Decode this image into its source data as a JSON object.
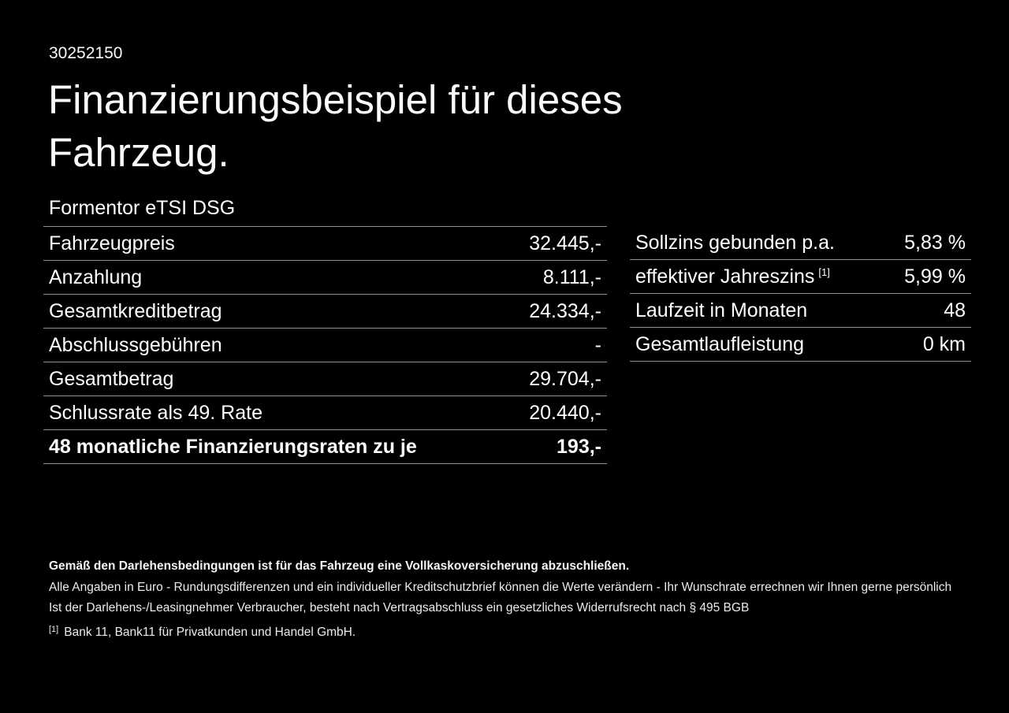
{
  "meta": {
    "background_color": "#000000",
    "text_color": "#ffffff",
    "divider_color": "#8f8f8f"
  },
  "header": {
    "vehicle_id": "30252150",
    "title_line1": "Finanzierungsbeispiel für dieses",
    "title_line2": "Fahrzeug.",
    "model_name": "Formentor eTSI DSG"
  },
  "finance_table": {
    "rows": [
      {
        "label": "Fahrzeugpreis",
        "value": "32.445,-"
      },
      {
        "label": "Anzahlung",
        "value": "8.111,-"
      },
      {
        "label": "Gesamtkreditbetrag",
        "value": "24.334,-"
      },
      {
        "label": "Abschlussgebühren",
        "value": "-"
      },
      {
        "label": "Gesamtbetrag",
        "value": "29.704,-"
      },
      {
        "label": "Schlussrate als 49. Rate",
        "value": "20.440,-"
      },
      {
        "label": "48 monatliche Finanzierungsraten zu je",
        "value": "193,-",
        "bold": true
      }
    ]
  },
  "conditions_table": {
    "rows": [
      {
        "label": "Sollzins gebunden p.a.",
        "value": "5,83 %"
      },
      {
        "label": "effektiver Jahreszins",
        "sup": "[1]",
        "value": "5,99 %"
      },
      {
        "label": "Laufzeit in Monaten",
        "value": "48"
      },
      {
        "label": "Gesamtlaufleistung",
        "value": "0 km"
      }
    ]
  },
  "footer": {
    "insurance_note": "Gemäß den Darlehensbedingungen ist für das Fahrzeug eine Vollkaskoversicherung abzuschließen.",
    "disclaimer_line1": "Alle Angaben in Euro - Rundungsdifferenzen und ein individueller Kreditschutzbrief können die Werte verändern - Ihr Wunschrate errechnen wir Ihnen gerne persönlich",
    "disclaimer_line2": "Ist der Darlehens-/Leasingnehmer Verbraucher, besteht nach Vertragsabschluss ein gesetzliches Widerrufsrecht nach § 495 BGB",
    "footnote_marker": "[1]",
    "footnote_text": "Bank 11, Bank11 für Privatkunden und Handel GmbH."
  }
}
